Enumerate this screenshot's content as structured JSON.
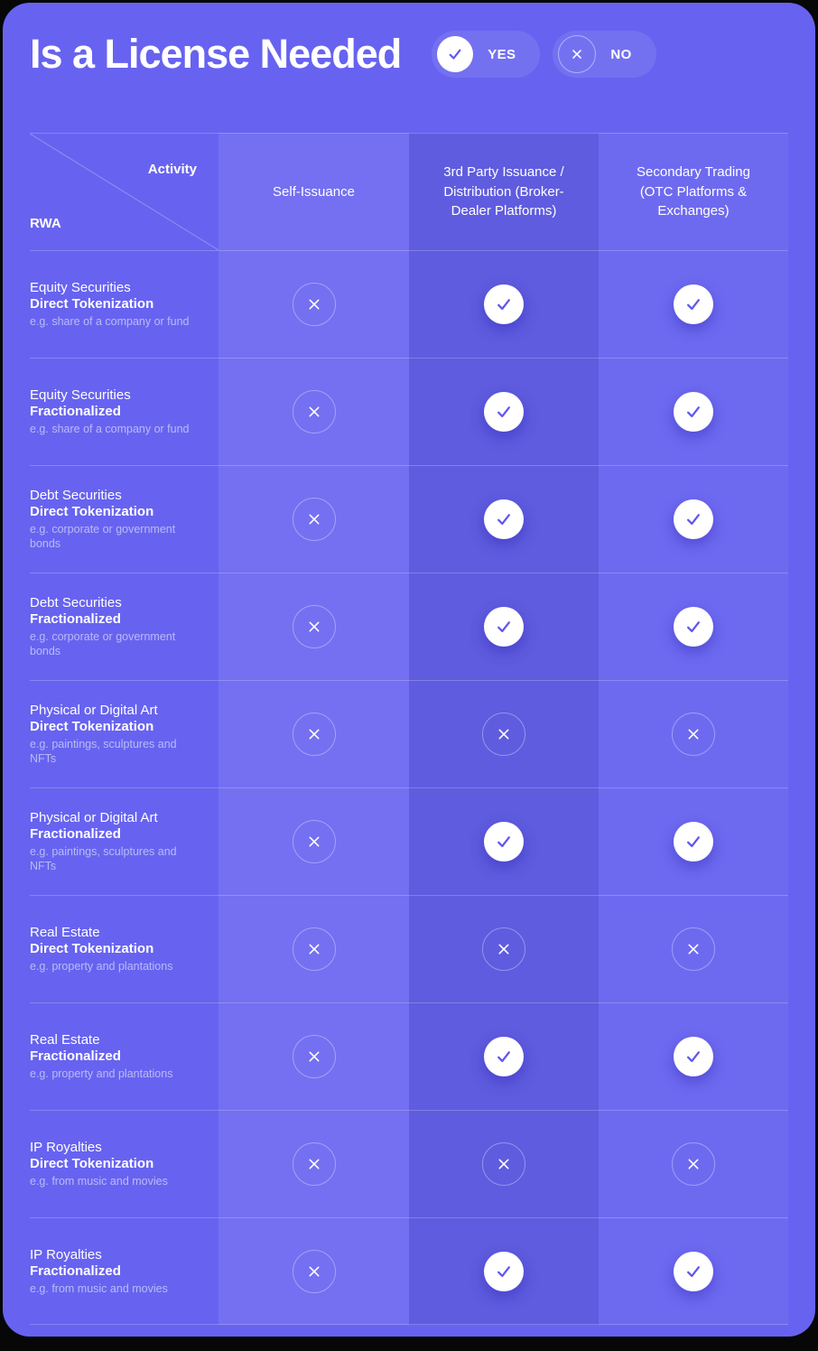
{
  "chart_data": {
    "type": "table",
    "title": "Is a License Needed",
    "legend": {
      "yes_label": "YES",
      "no_label": "NO"
    },
    "corner": {
      "activity_label": "Activity",
      "rwa_label": "RWA"
    },
    "columns": [
      "Self-Issuance",
      "3rd Party Issuance / Distribution (Broker-Dealer Platforms)",
      "Secondary Trading (OTC Platforms & Exchanges)"
    ],
    "rows": [
      {
        "asset": "Equity Securities",
        "method": "Direct Tokenization",
        "example": "e.g. share of a company or fund",
        "values": [
          "no",
          "yes",
          "yes"
        ]
      },
      {
        "asset": "Equity Securities",
        "method": "Fractionalized",
        "example": "e.g. share of a company or fund",
        "values": [
          "no",
          "yes",
          "yes"
        ]
      },
      {
        "asset": "Debt Securities",
        "method": "Direct Tokenization",
        "example": "e.g. corporate or government bonds",
        "values": [
          "no",
          "yes",
          "yes"
        ]
      },
      {
        "asset": "Debt Securities",
        "method": "Fractionalized",
        "example": "e.g. corporate or government bonds",
        "values": [
          "no",
          "yes",
          "yes"
        ]
      },
      {
        "asset": "Physical or Digital Art",
        "method": "Direct Tokenization",
        "example": "e.g. paintings, sculptures and NFTs",
        "values": [
          "no",
          "no",
          "no"
        ]
      },
      {
        "asset": "Physical or Digital Art",
        "method": "Fractionalized",
        "example": "e.g. paintings, sculptures and NFTs",
        "values": [
          "no",
          "yes",
          "yes"
        ]
      },
      {
        "asset": "Real Estate",
        "method": "Direct Tokenization",
        "example": "e.g. property and plantations",
        "values": [
          "no",
          "no",
          "no"
        ]
      },
      {
        "asset": "Real Estate",
        "method": "Fractionalized",
        "example": "e.g. property and plantations",
        "values": [
          "no",
          "yes",
          "yes"
        ]
      },
      {
        "asset": "IP Royalties",
        "method": "Direct Tokenization",
        "example": "e.g. from music and movies",
        "values": [
          "no",
          "no",
          "no"
        ]
      },
      {
        "asset": "IP Royalties",
        "method": "Fractionalized",
        "example": "e.g. from music and movies",
        "values": [
          "no",
          "yes",
          "yes"
        ]
      }
    ]
  },
  "colors": {
    "page_bg": "#070707",
    "card_bg": "#6763F0",
    "check_stroke": "#6157EE"
  }
}
